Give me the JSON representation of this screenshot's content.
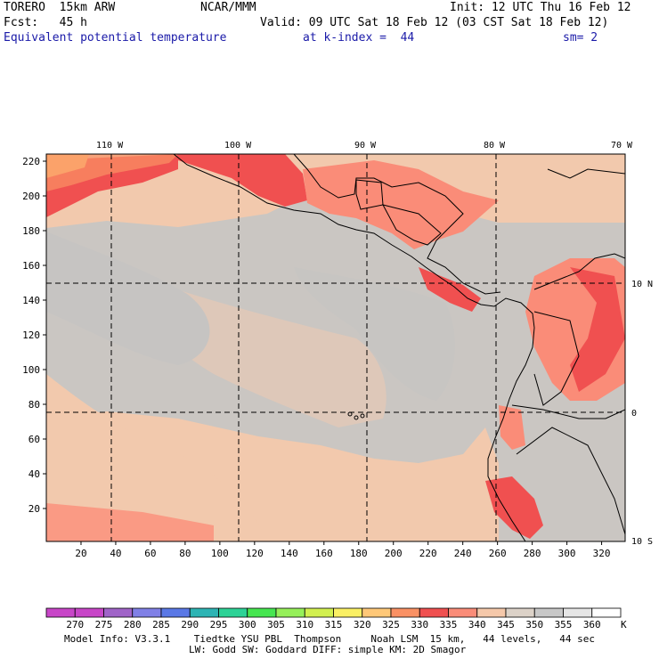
{
  "header": {
    "model": "TORERO  15km ARW",
    "org": "NCAR/MMM",
    "init": "Init: 12 UTC Thu 16 Feb 12",
    "fcst": "Fcst:   45 h",
    "valid": "Valid: 09 UTC Sat 18 Feb 12 (03 CST Sat 18 Feb 12)",
    "field": "Equivalent potential temperature",
    "level": "at k-index =  44",
    "smooth": "sm= 2"
  },
  "map": {
    "lon_labels": [
      "110 W",
      "100 W",
      "90 W",
      "80 W",
      "70 W"
    ],
    "lat_labels": [
      "10 N",
      "0",
      "10 S"
    ],
    "x_ticks": [
      "20",
      "40",
      "60",
      "80",
      "100",
      "120",
      "140",
      "160",
      "180",
      "200",
      "220",
      "240",
      "260",
      "280",
      "300",
      "320"
    ],
    "y_ticks": [
      "220",
      "200",
      "180",
      "160",
      "140",
      "120",
      "100",
      "80",
      "60",
      "40",
      "20"
    ],
    "land_fill": "#e2e2e2",
    "colors": {
      "c320": "#ffc878",
      "c325": "#fa9164",
      "c330": "#f05050",
      "c335": "#fa8c78",
      "c340": "#f5c8aa",
      "c345": "#dcd2c8",
      "c350": "#c8c8c8"
    }
  },
  "colorbar": {
    "labels": [
      "270",
      "275",
      "280",
      "285",
      "290",
      "295",
      "300",
      "305",
      "310",
      "315",
      "320",
      "325",
      "330",
      "335",
      "340",
      "345",
      "350",
      "355",
      "360"
    ],
    "unit": "K",
    "colors": [
      "#c846c8",
      "#a064c8",
      "#8080e6",
      "#5a78e6",
      "#2db4b4",
      "#2dd296",
      "#46e650",
      "#96f05a",
      "#d2f050",
      "#faf064",
      "#ffc878",
      "#fa9164",
      "#f05050",
      "#fa8c78",
      "#f5c8aa",
      "#dcd2c8",
      "#c8c8c8",
      "#e6e6e6",
      "#ffffff"
    ]
  },
  "footer": {
    "line1": "Model Info: V3.3.1    Tiedtke YSU PBL  Thompson     Noah LSM  15 km,   44 levels,   44 sec",
    "line2": "LW: Godd SW: Goddard DIFF: simple KM: 2D Smagor"
  }
}
